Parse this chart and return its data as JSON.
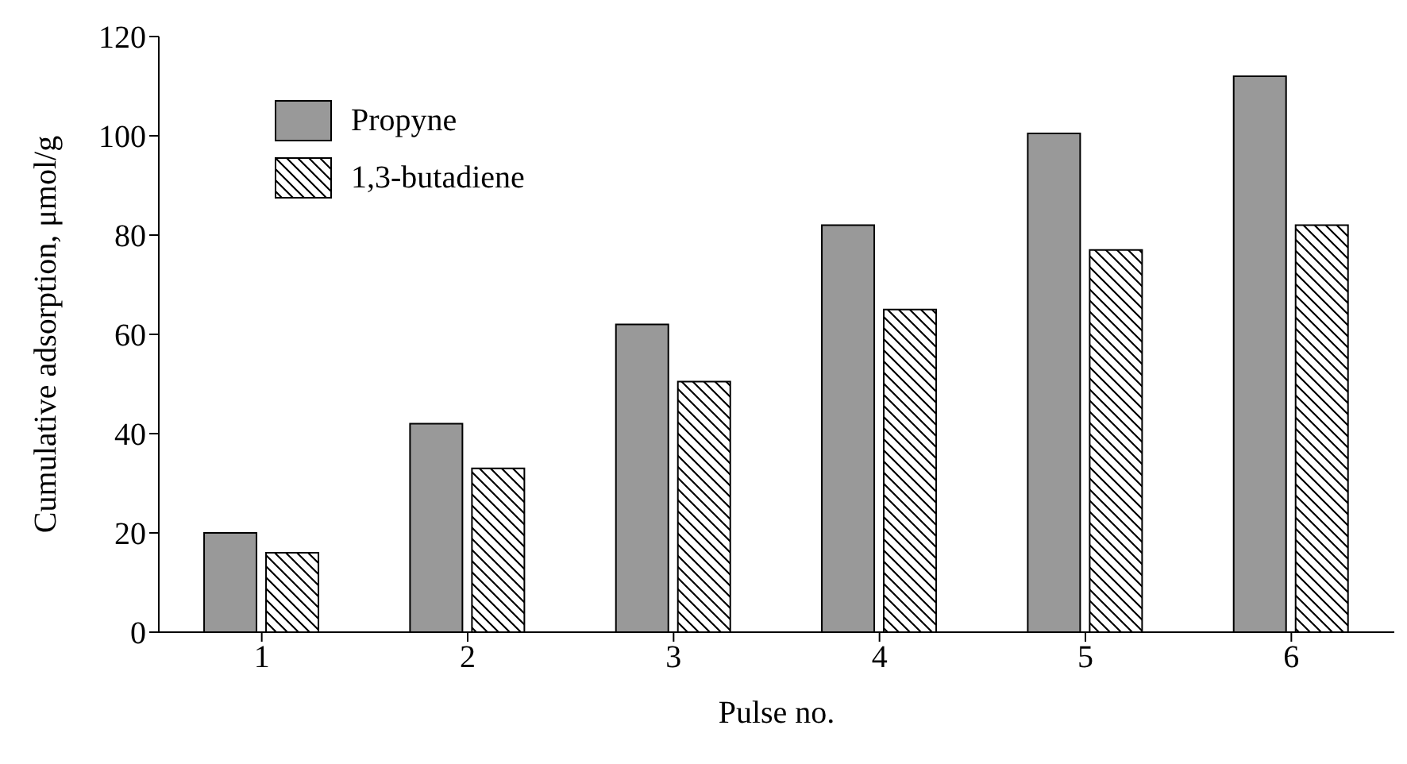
{
  "chart_data": {
    "type": "bar",
    "xlabel": "Pulse no.",
    "ylabel": "Cumulative adsorption, μmol/g",
    "categories": [
      "1",
      "2",
      "3",
      "4",
      "5",
      "6"
    ],
    "series": [
      {
        "name": "Propyne",
        "color": "#999999",
        "values": [
          20,
          42,
          62,
          82,
          100.5,
          112
        ]
      },
      {
        "name": "1,3-butadiene",
        "color": "#000000",
        "values": [
          16,
          33,
          50.5,
          65,
          77,
          82
        ]
      }
    ],
    "ylim": [
      0,
      120
    ],
    "yticks": [
      0,
      20,
      40,
      60,
      80,
      100,
      120
    ],
    "grid": false,
    "legend": "top left"
  }
}
